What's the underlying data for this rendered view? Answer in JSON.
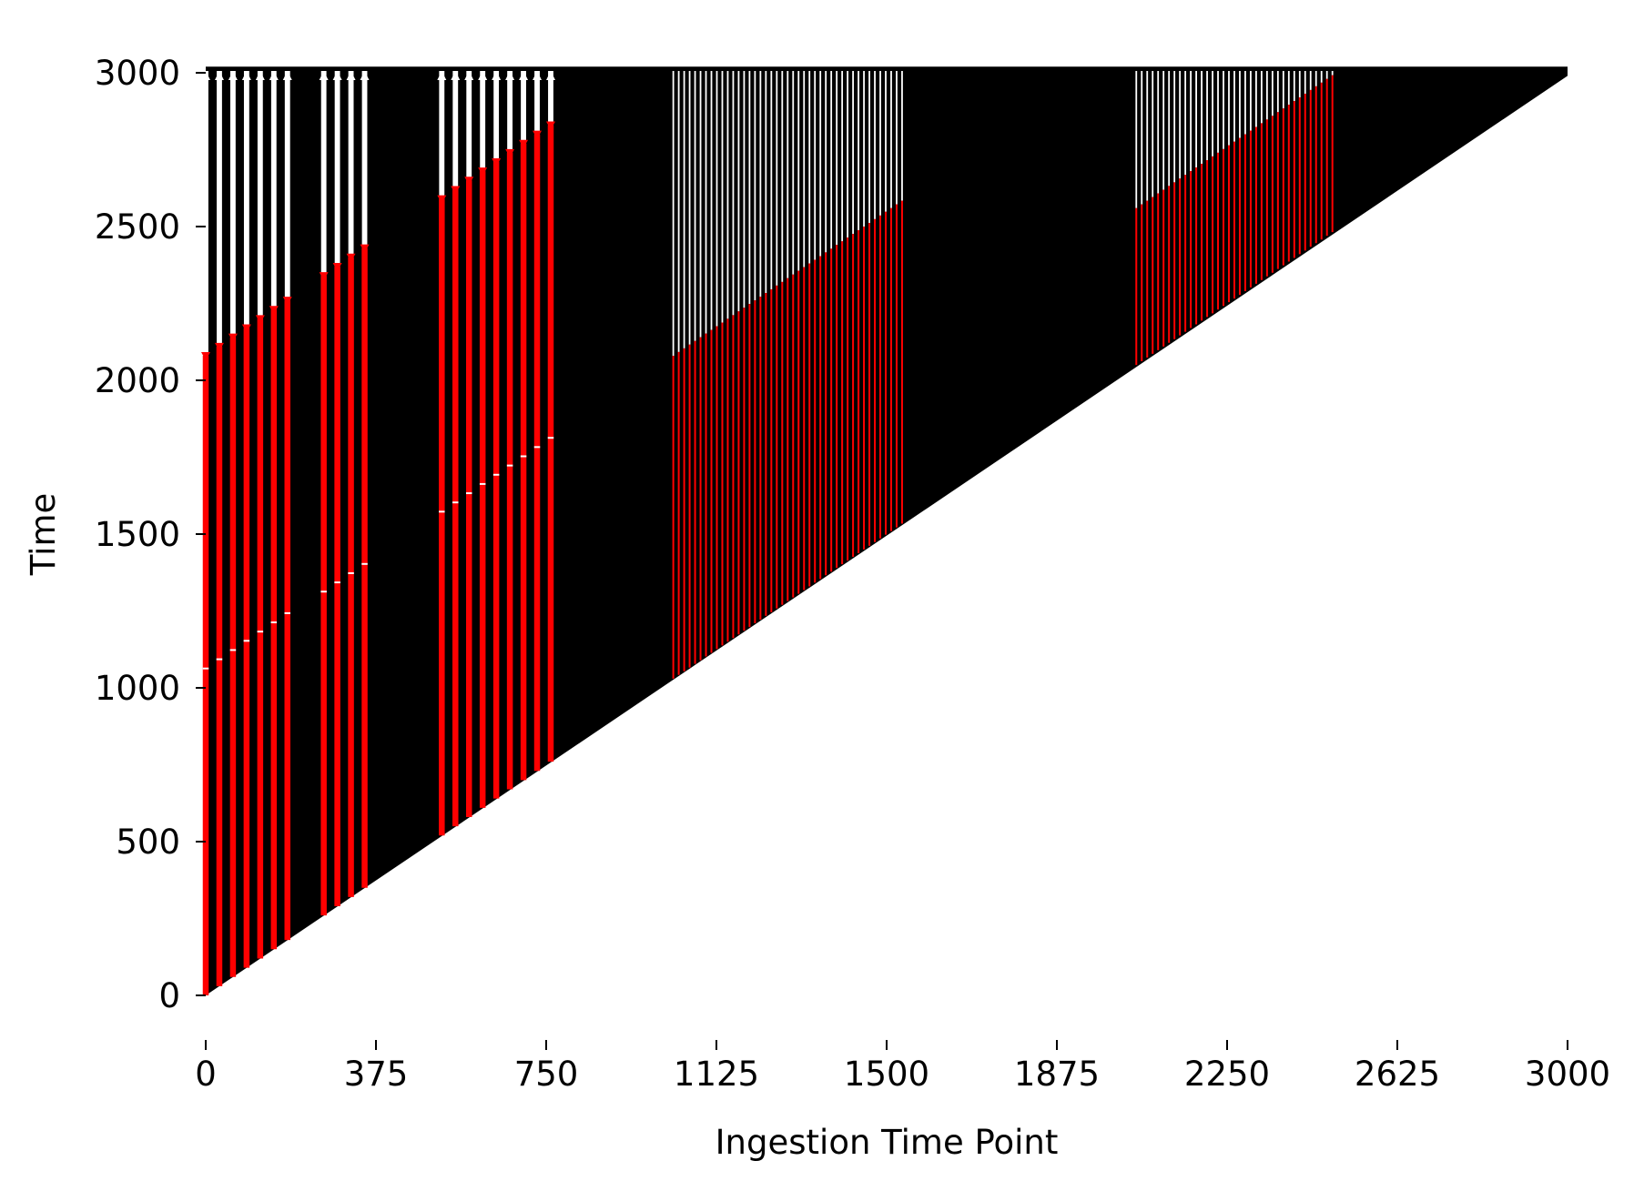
{
  "chart_data": {
    "type": "bar",
    "title": "",
    "xlabel": "Ingestion Time Point",
    "ylabel": "Time",
    "xlim": [
      0,
      3000
    ],
    "ylim": [
      0,
      3000
    ],
    "xticks": [
      0,
      375,
      750,
      1125,
      1500,
      1875,
      2250,
      2625,
      3000
    ],
    "yticks": [
      0,
      500,
      1000,
      1500,
      2000,
      2500,
      3000
    ],
    "grid": false,
    "legend": "none",
    "colors": {
      "background": "#000000",
      "highlight": "#ff0000",
      "gap": "#ffffff"
    },
    "highlight_groups": [
      {
        "starts": [
          0,
          30,
          60,
          90,
          120,
          150,
          180
        ],
        "low_top_offset": 1060,
        "marker_offset": 2080,
        "reaches": 3000,
        "stroke": 6.5
      },
      {
        "starts": [
          260,
          290,
          320,
          350
        ],
        "low_top_offset": 1050,
        "marker_offset": 2080,
        "reaches": 3000,
        "stroke": 6.5
      },
      {
        "starts": [
          520,
          550,
          580,
          610,
          640,
          670,
          700,
          730,
          760
        ],
        "low_top_offset": 1050,
        "marker_offset": 2070,
        "reaches": 3000,
        "stroke": 6.5
      },
      {
        "start": 1030,
        "end": 1540,
        "step": 12,
        "low_top_offset": 1050,
        "marker_offset": 1050,
        "reaches": 3000,
        "stroke": 2
      },
      {
        "start": 2050,
        "end": 2490,
        "step": 12,
        "low_top_offset": 510,
        "marker_offset": 510,
        "reaches": 3000,
        "stroke": 2
      }
    ]
  }
}
